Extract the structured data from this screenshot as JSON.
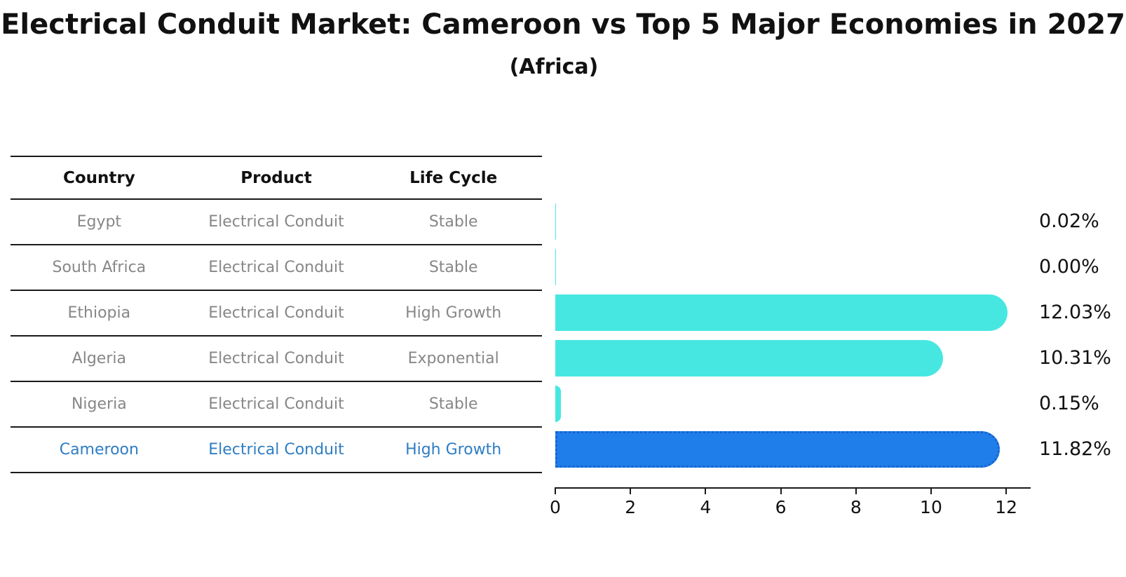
{
  "title": "Electrical Conduit Market: Cameroon vs Top 5 Major Economies in 2027",
  "subtitle": "(Africa)",
  "table": {
    "headers": [
      "Country",
      "Product",
      "Life Cycle"
    ],
    "rows": [
      {
        "country": "Egypt",
        "product": "Electrical Conduit",
        "life_cycle": "Stable",
        "highlight": false
      },
      {
        "country": "South Africa",
        "product": "Electrical Conduit",
        "life_cycle": "Stable",
        "highlight": false
      },
      {
        "country": "Ethiopia",
        "product": "Electrical Conduit",
        "life_cycle": "High Growth",
        "highlight": false
      },
      {
        "country": "Algeria",
        "product": "Electrical Conduit",
        "life_cycle": "Exponential",
        "highlight": false
      },
      {
        "country": "Nigeria",
        "product": "Electrical Conduit",
        "life_cycle": "Stable",
        "highlight": false
      },
      {
        "country": "Cameroon",
        "product": "Electrical Conduit",
        "life_cycle": "High Growth",
        "highlight": true
      }
    ]
  },
  "chart_data": {
    "type": "bar",
    "orientation": "horizontal",
    "title": "Electrical Conduit Market: Cameroon vs Top 5 Major Economies in 2027",
    "subtitle": "(Africa)",
    "categories": [
      "Egypt",
      "South Africa",
      "Ethiopia",
      "Algeria",
      "Nigeria",
      "Cameroon"
    ],
    "values": [
      0.02,
      0.0,
      12.03,
      10.31,
      0.15,
      11.82
    ],
    "value_labels": [
      "0.02%",
      "0.00%",
      "12.03%",
      "10.31%",
      "0.15%",
      "11.82%"
    ],
    "highlight_index": 5,
    "xticks": [
      0,
      2,
      4,
      6,
      8,
      10,
      12
    ],
    "xlim": [
      0,
      12.65
    ],
    "grid": false,
    "legend": "none",
    "bar_color": "#47e7e1",
    "highlight_bar_color": "#1f7eea",
    "highlight_bar_edge_color": "#1663cf",
    "axis_color": "#1a1a1a",
    "label_color": "#111111",
    "row_text_color": "#878787",
    "highlight_text_color": "#2e7dc4"
  }
}
